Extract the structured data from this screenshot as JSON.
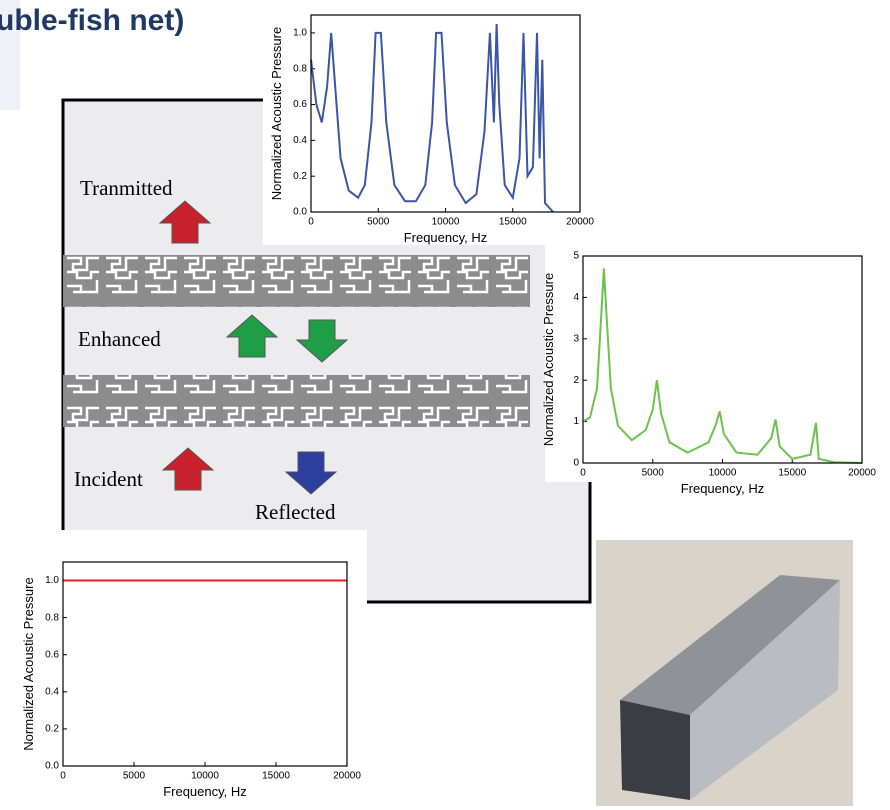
{
  "header": {
    "title": "uble-fish net)"
  },
  "diagram": {
    "labels": [
      "Tranmitted",
      "Enhanced",
      "Incident",
      "Reflected"
    ]
  },
  "chart_data": [
    {
      "type": "line",
      "xlabel": "Frequency, Hz",
      "ylabel": "Normalized Acoustic Pressure",
      "color": "#3b55a8",
      "x": [
        0,
        400,
        800,
        1200,
        1500,
        1800,
        2200,
        2800,
        3500,
        4000,
        4500,
        4800,
        5200,
        5600,
        6200,
        7000,
        7800,
        8500,
        9000,
        9300,
        9700,
        10100,
        10700,
        11500,
        12300,
        12900,
        13300,
        13600,
        13800,
        14000,
        14400,
        15000,
        15500,
        15800,
        16100,
        16500,
        16800,
        17000,
        17200,
        17400,
        18000
      ],
      "values": [
        0.85,
        0.6,
        0.5,
        0.7,
        1.0,
        0.7,
        0.3,
        0.12,
        0.08,
        0.15,
        0.5,
        1.0,
        1.0,
        0.5,
        0.15,
        0.06,
        0.06,
        0.15,
        0.5,
        1.0,
        1.0,
        0.5,
        0.15,
        0.05,
        0.1,
        0.45,
        1.0,
        0.5,
        1.05,
        0.6,
        0.15,
        0.08,
        0.3,
        1.0,
        0.2,
        0.25,
        1.0,
        0.3,
        0.85,
        0.05,
        0.0
      ],
      "xlim": [
        0,
        20000
      ],
      "xticks": [
        0,
        5000,
        10000,
        15000,
        20000
      ],
      "ylim": [
        0,
        1.1
      ],
      "yticks": [
        {
          "value": 0,
          "label": "0.0"
        },
        {
          "value": 0.2,
          "label": "0.2"
        },
        {
          "value": 0.4,
          "label": "0.4"
        },
        {
          "value": 0.6,
          "label": "0.6"
        },
        {
          "value": 0.8,
          "label": "0.8"
        },
        {
          "value": 1,
          "label": "1.0"
        }
      ]
    },
    {
      "type": "line",
      "xlabel": "Frequency, Hz",
      "ylabel": "Normalized Acoustic Pressure",
      "color": "#6cc24a",
      "x": [
        0,
        500,
        1000,
        1300,
        1500,
        1700,
        2000,
        2500,
        3500,
        4500,
        5000,
        5300,
        5600,
        6200,
        7500,
        9000,
        9500,
        9800,
        10100,
        11000,
        12500,
        13500,
        13800,
        14100,
        15000,
        16300,
        16700,
        16900,
        18000,
        20000
      ],
      "values": [
        1.0,
        1.1,
        1.8,
        3.5,
        4.7,
        3.5,
        1.8,
        0.9,
        0.55,
        0.8,
        1.3,
        2.0,
        1.2,
        0.5,
        0.25,
        0.5,
        0.9,
        1.25,
        0.7,
        0.25,
        0.2,
        0.6,
        1.05,
        0.4,
        0.1,
        0.2,
        0.97,
        0.1,
        0.02,
        0.0
      ],
      "xlim": [
        0,
        20000
      ],
      "xticks": [
        0,
        5000,
        10000,
        15000,
        20000
      ],
      "ylim": [
        0,
        5
      ],
      "yticks": [
        0,
        1,
        2,
        3,
        4,
        5
      ]
    },
    {
      "type": "line",
      "xlabel": "Frequency, Hz",
      "ylabel": "Normalized Acoustic Pressure",
      "color": "#e02020",
      "x": [
        0,
        20000
      ],
      "values": [
        1.0,
        1.0
      ],
      "xlim": [
        0,
        20000
      ],
      "xticks": [
        0,
        5000,
        10000,
        15000,
        20000
      ],
      "ylim": [
        0,
        1.1
      ],
      "yticks": [
        {
          "value": 0,
          "label": "0.0"
        },
        {
          "value": 0.2,
          "label": "0.2"
        },
        {
          "value": 0.4,
          "label": "0.4"
        },
        {
          "value": 0.6,
          "label": "0.6"
        },
        {
          "value": 0.8,
          "label": "0.8"
        },
        {
          "value": 1,
          "label": "1.0"
        }
      ]
    }
  ]
}
